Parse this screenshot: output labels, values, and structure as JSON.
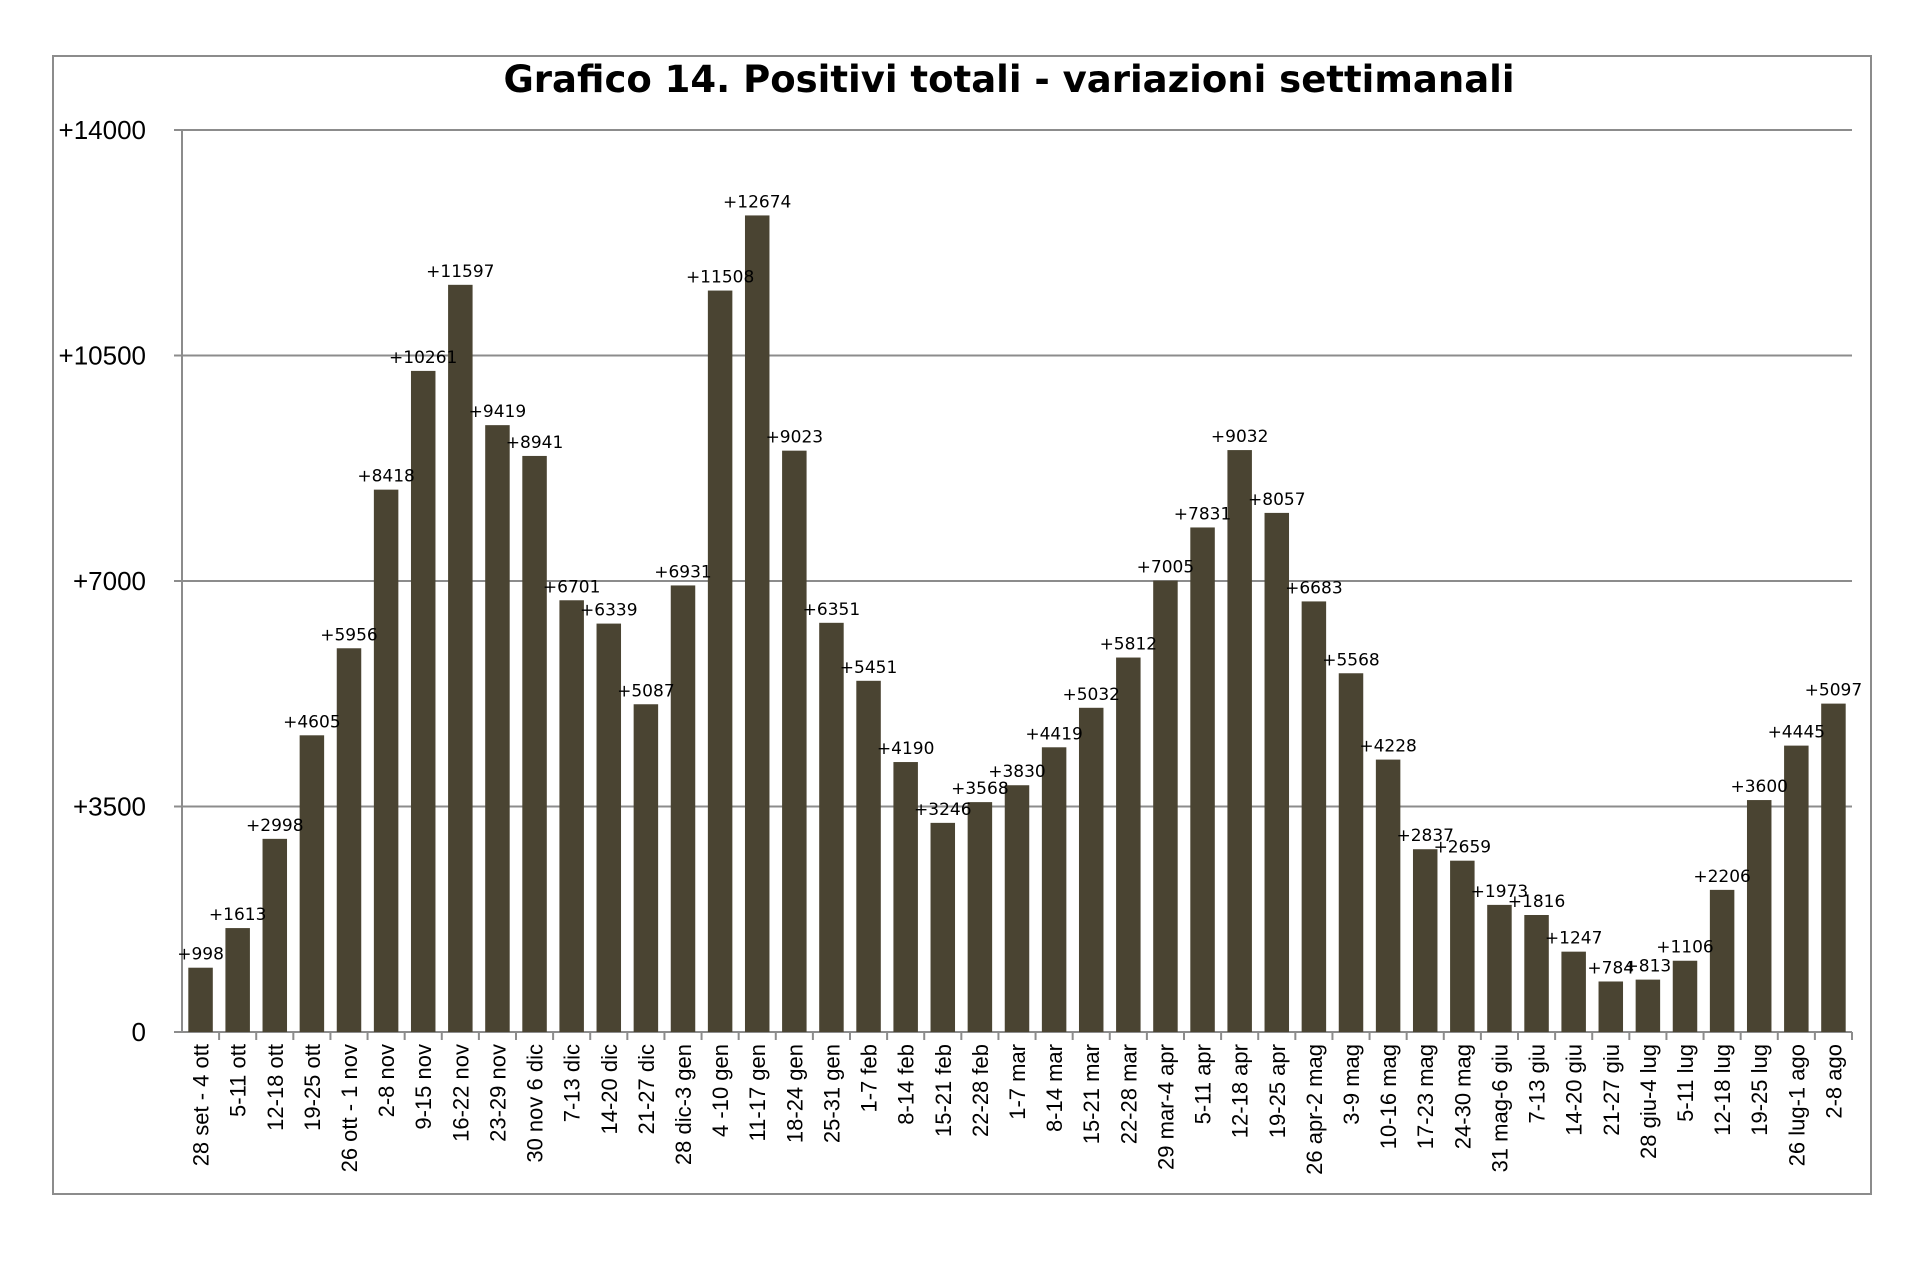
{
  "chart_data": {
    "type": "bar",
    "title": "Grafico 14. Positivi totali  - variazioni settimanali",
    "xlabel": "",
    "ylabel": "",
    "ylim": [
      0,
      14000
    ],
    "yticks": [
      0,
      3500,
      7000,
      10500,
      14000
    ],
    "ytick_labels": [
      "0",
      "+3500",
      "+7000",
      "+10500",
      "+14000"
    ],
    "grid": true,
    "legend": "none",
    "bar_color": "#4a4432",
    "categories": [
      "28 set - 4 ott",
      "5-11 ott",
      "12-18 ott",
      "19-25 ott",
      "26 ott - 1 nov",
      "2-8 nov",
      "9-15 nov",
      "16-22 nov",
      "23-29 nov",
      "30 nov 6 dic",
      "7-13 dic",
      "14-20 dic",
      "21-27 dic",
      "28 dic-3 gen",
      "4 -10 gen",
      "11-17 gen",
      "18-24 gen",
      "25-31 gen",
      "1-7 feb",
      "8-14 feb",
      "15-21 feb",
      "22-28 feb",
      "1-7 mar",
      "8-14 mar",
      "15-21 mar",
      "22-28 mar",
      "29 mar-4 apr",
      "5-11 apr",
      "12-18 apr",
      "19-25 apr",
      "26 apr-2 mag",
      "3-9 mag",
      "10-16 mag",
      "17-23 mag",
      "24-30 mag",
      "31 mag-6 giu",
      "7-13 giu",
      "14-20 giu",
      "21-27 giu",
      "28 giu-4 lug",
      "5-11 lug",
      "12-18 lug",
      "19-25 lug",
      "26 lug-1 ago",
      "2-8 ago"
    ],
    "values": [
      998,
      1613,
      2998,
      4605,
      5956,
      8418,
      10261,
      11597,
      9419,
      8941,
      6701,
      6339,
      5087,
      6931,
      11508,
      12674,
      9023,
      6351,
      5451,
      4190,
      3246,
      3568,
      3830,
      4419,
      5032,
      5812,
      7005,
      7831,
      9032,
      8057,
      6683,
      5568,
      4228,
      2837,
      2659,
      1973,
      1816,
      1247,
      784,
      813,
      1106,
      2206,
      3600,
      4445,
      5097
    ],
    "data_labels": [
      "+998",
      "+1613",
      "+2998",
      "+4605",
      "+5956",
      "+8418",
      "+10261",
      "+11597",
      "+9419",
      "+8941",
      "+6701",
      "+6339",
      "+5087",
      "+6931",
      "+11508",
      "+12674",
      "+9023",
      "+6351",
      "+5451",
      "+4190",
      "+3246",
      "+3568",
      "+3830",
      "+4419",
      "+5032",
      "+5812",
      "+7005",
      "+7831",
      "+9032",
      "+8057",
      "+6683",
      "+5568",
      "+4228",
      "+2837",
      "+2659",
      "+1973",
      "+1816",
      "+1247",
      "+784",
      "+813",
      "+1106",
      "+2206",
      "+3600",
      "+4445",
      "+5097"
    ]
  }
}
